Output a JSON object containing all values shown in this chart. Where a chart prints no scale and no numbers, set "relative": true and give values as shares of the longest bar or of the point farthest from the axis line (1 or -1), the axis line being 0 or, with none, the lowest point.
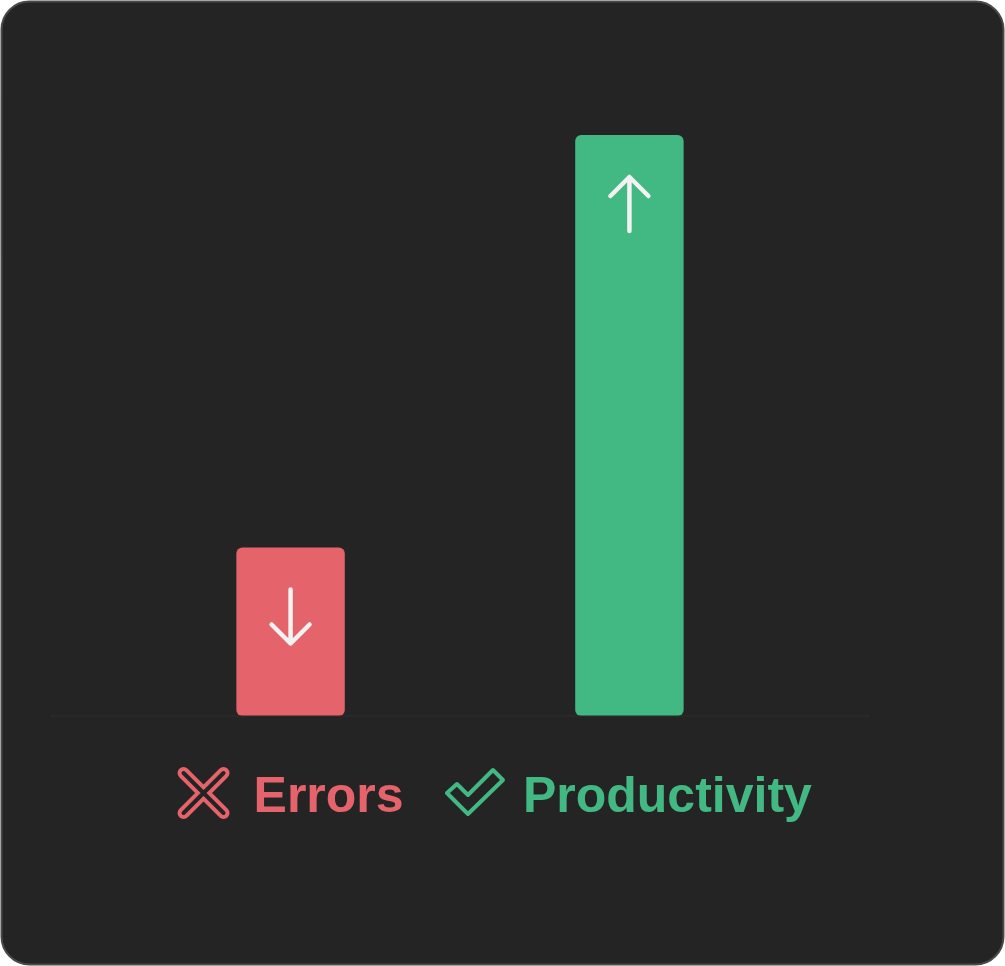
{
  "chart_data": {
    "type": "bar",
    "relative": true,
    "categories": [
      "Errors",
      "Productivity"
    ],
    "values": [
      0.29,
      1
    ],
    "colors": [
      "#e5636a",
      "#42b883"
    ]
  }
}
